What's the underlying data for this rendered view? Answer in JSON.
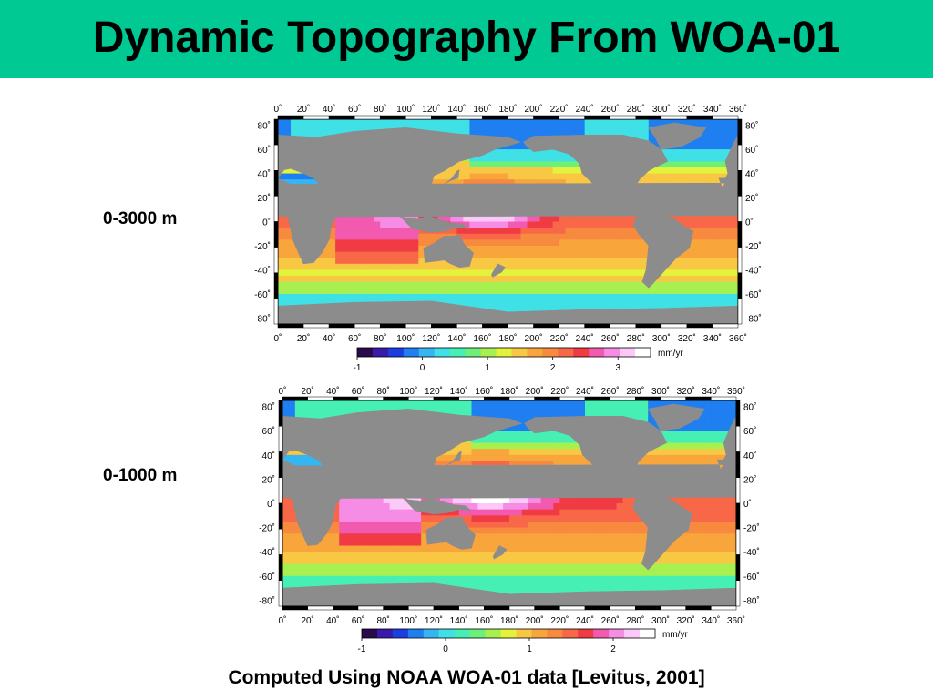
{
  "header": {
    "title": "Dynamic Topography From WOA-01"
  },
  "footer": {
    "text": "Computed Using NOAA WOA-01 data [Levitus, 2001]"
  },
  "colors": {
    "header_bg": "#00c994",
    "land": "#8c8c8c",
    "palette": [
      "#2a0a4a",
      "#3a1aa8",
      "#1c3ee0",
      "#1f7ff0",
      "#35b6f2",
      "#3fe0e6",
      "#46f0b5",
      "#6cf07a",
      "#a8f050",
      "#e4f23c",
      "#f8c844",
      "#f8a63c",
      "#f88a40",
      "#f86848",
      "#f03a44",
      "#f25ab0",
      "#f78ce6",
      "#fcc8f8",
      "#ffffff"
    ]
  },
  "maps": [
    {
      "label": "0-3000 m",
      "colorbar": {
        "unit": "mm/yr",
        "ticks": [
          "-1",
          "0",
          "1",
          "2",
          "3"
        ],
        "range": [
          -1,
          3.5
        ]
      },
      "lon_ticks": [
        "0˚",
        "20˚",
        "40˚",
        "60˚",
        "80˚",
        "100˚",
        "120˚",
        "140˚",
        "160˚",
        "180˚",
        "200˚",
        "220˚",
        "240˚",
        "260˚",
        "280˚",
        "300˚",
        "320˚",
        "340˚",
        "360˚"
      ],
      "lat_ticks": [
        "80˚",
        "60˚",
        "40˚",
        "20˚",
        "0˚",
        "-20˚",
        "-40˚",
        "-60˚",
        "-80˚"
      ]
    },
    {
      "label": "0-1000 m",
      "colorbar": {
        "unit": "mm/yr",
        "ticks": [
          "-1",
          "0",
          "1",
          "2"
        ],
        "range": [
          -1,
          2.5
        ]
      },
      "lon_ticks": [
        "0˚",
        "20˚",
        "40˚",
        "60˚",
        "80˚",
        "100˚",
        "120˚",
        "140˚",
        "160˚",
        "180˚",
        "200˚",
        "220˚",
        "240˚",
        "260˚",
        "280˚",
        "300˚",
        "320˚",
        "340˚",
        "360˚"
      ],
      "lat_ticks": [
        "80˚",
        "60˚",
        "40˚",
        "20˚",
        "0˚",
        "-20˚",
        "-40˚",
        "-60˚",
        "-80˚"
      ]
    }
  ]
}
